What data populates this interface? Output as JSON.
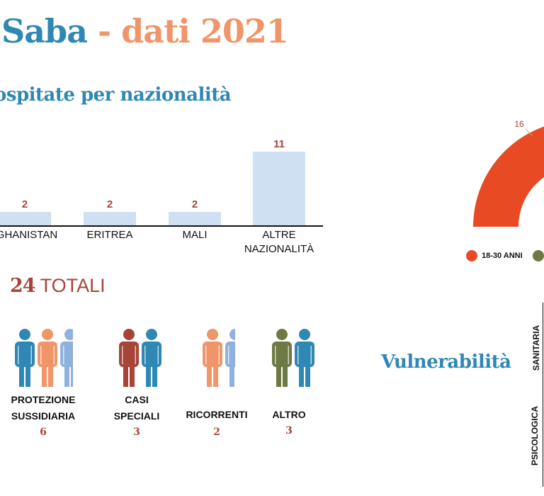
{
  "header": {
    "title_part1": "Saba",
    "title_sep": " - ",
    "title_part2": "dati 2021",
    "title_color1": "#2f87b4",
    "title_color2": "#f0956a"
  },
  "section_nationality": {
    "title": "ospitate per nazionalità"
  },
  "chart_data": [
    {
      "type": "bar",
      "title": "ospitate per nazionalità",
      "categories": [
        "GHANISTAN",
        "ERITREA",
        "MALI",
        "ALTRE NAZIONALITÀ"
      ],
      "values": [
        2,
        2,
        2,
        11
      ],
      "ylim": [
        0,
        11
      ],
      "bar_color": "#cfe0f2",
      "label_color": "#a64438"
    },
    {
      "type": "pie",
      "visible_labels": [
        "16"
      ],
      "legend": [
        "18-30 ANNI"
      ],
      "colors": [
        "#e84a24",
        "#6e7a45"
      ]
    }
  ],
  "totals": {
    "number": "24",
    "label": " TOTALI"
  },
  "groups": [
    {
      "label_lines": [
        "PROTEZIONE",
        "SUSSIDIARIA"
      ],
      "count": "6",
      "icons": [
        "#2f87b4",
        "#f0956a",
        "#8fb1dd"
      ]
    },
    {
      "label_lines": [
        "CASI",
        "SPECIALI"
      ],
      "count": "3",
      "icons": [
        "#a64438",
        "#2f87b4"
      ]
    },
    {
      "label_lines": [
        "RICORRENTI"
      ],
      "count": "2",
      "icons": [
        "#f0956a",
        "#8fb1dd"
      ]
    },
    {
      "label_lines": [
        "ALTRO"
      ],
      "count": "3",
      "icons": [
        "#6e7a45",
        "#2f87b4"
      ]
    }
  ],
  "vulnerability": {
    "title": "Vulnerabilità",
    "categories": [
      "SANITARIA",
      "PSICOLOGICA"
    ]
  }
}
